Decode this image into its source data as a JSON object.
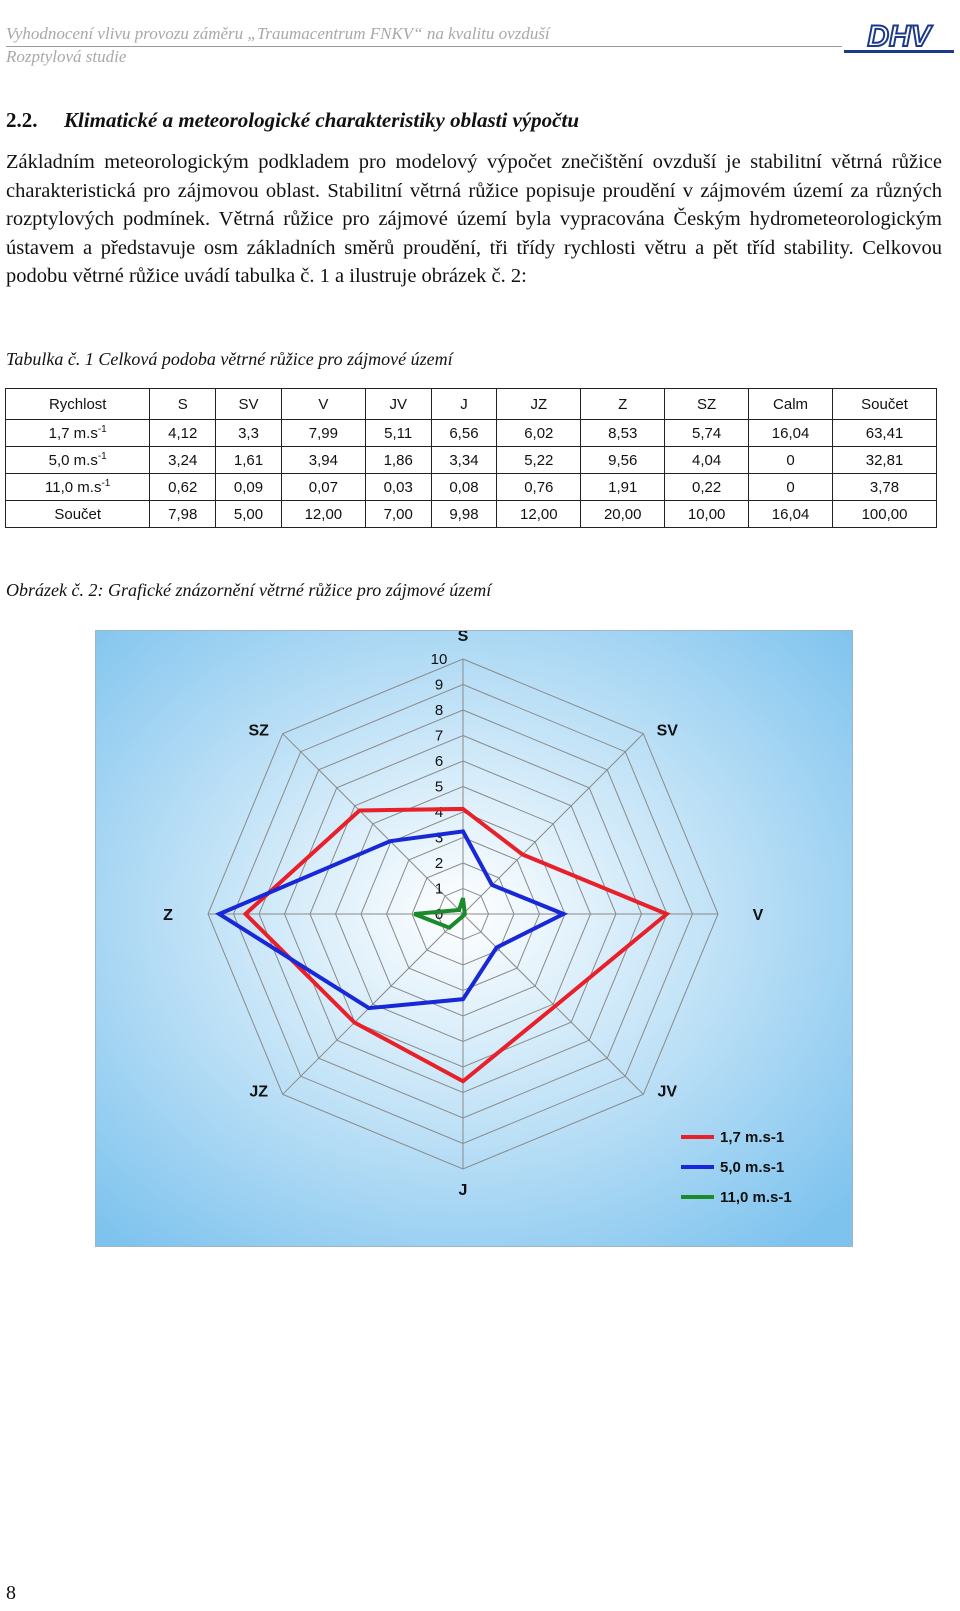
{
  "header": {
    "title": "Vyhodnocení vlivu provozu záměru „Traumacentrum FNKV“ na kvalitu ovzduší",
    "subtitle": "Rozptylová studie",
    "logo_text": "DHV"
  },
  "section": {
    "number": "2.2.",
    "title": "Klimatické a meteorologické charakteristiky oblasti výpočtu"
  },
  "paragraph": "Základním meteorologickým podkladem pro modelový výpočet znečištění ovzduší je stabilitní větrná růžice charakteristická pro zájmovou oblast. Stabilitní větrná růžice popisuje proudění v zájmovém území za různých rozptylových podmínek. Větrná růžice pro zájmové území byla vypracována Českým hydrometeorologickým ústavem a představuje osm základních směrů proudění, tři třídy rychlosti větru a pět tříd stability. Celkovou podobu větrné růžice uvádí tabulka č. 1 a ilustruje obrázek č. 2:",
  "table_caption": "Tabulka č. 1 Celková podoba větrné růžice pro zájmové území",
  "table": {
    "headers": [
      "Rychlost",
      "S",
      "SV",
      "V",
      "JV",
      "J",
      "JZ",
      "Z",
      "SZ",
      "Calm",
      "Součet"
    ],
    "rows": [
      {
        "base": "1,7 m.s",
        "sup": "-1",
        "cells": [
          "4,12",
          "3,3",
          "7,99",
          "5,11",
          "6,56",
          "6,02",
          "8,53",
          "5,74",
          "16,04",
          "63,41"
        ]
      },
      {
        "base": "5,0 m.s",
        "sup": "-1",
        "cells": [
          "3,24",
          "1,61",
          "3,94",
          "1,86",
          "3,34",
          "5,22",
          "9,56",
          "4,04",
          "0",
          "32,81"
        ]
      },
      {
        "base": "11,0 m.s",
        "sup": "-1",
        "cells": [
          "0,62",
          "0,09",
          "0,07",
          "0,03",
          "0,08",
          "0,76",
          "1,91",
          "0,22",
          "0",
          "3,78"
        ]
      },
      {
        "base": "Součet",
        "sup": "",
        "cells": [
          "7,98",
          "5,00",
          "12,00",
          "7,00",
          "9,98",
          "12,00",
          "20,00",
          "10,00",
          "16,04",
          "100,00"
        ]
      }
    ]
  },
  "figure_caption": "Obrázek č. 2: Grafické znázornění větrné růžice pro zájmové území",
  "chart_data": {
    "type": "radar",
    "categories": [
      "S",
      "SV",
      "V",
      "JV",
      "J",
      "JZ",
      "Z",
      "SZ"
    ],
    "rlim": [
      0,
      10
    ],
    "ticks": [
      "0",
      "1",
      "2",
      "3",
      "4",
      "5",
      "6",
      "7",
      "8",
      "9",
      "10"
    ],
    "series": [
      {
        "name": "1,7 m.s-1",
        "color": "#e8202a",
        "values": [
          4.12,
          3.3,
          7.99,
          5.11,
          6.56,
          6.02,
          8.53,
          5.74
        ]
      },
      {
        "name": "5,0 m.s-1",
        "color": "#1828d8",
        "values": [
          3.24,
          1.61,
          3.94,
          1.86,
          3.34,
          5.22,
          9.56,
          4.04
        ]
      },
      {
        "name": "11,0 m.s-1",
        "color": "#1a8a2a",
        "values": [
          0.62,
          0.09,
          0.07,
          0.03,
          0.08,
          0.76,
          1.91,
          0.22
        ]
      }
    ],
    "grid": true,
    "legend": "bottom-right",
    "colors": {
      "background_center": "#ffffff",
      "background_edge": "#7ec3ee",
      "grid": "#8a8a8a"
    }
  },
  "page_number": "8"
}
